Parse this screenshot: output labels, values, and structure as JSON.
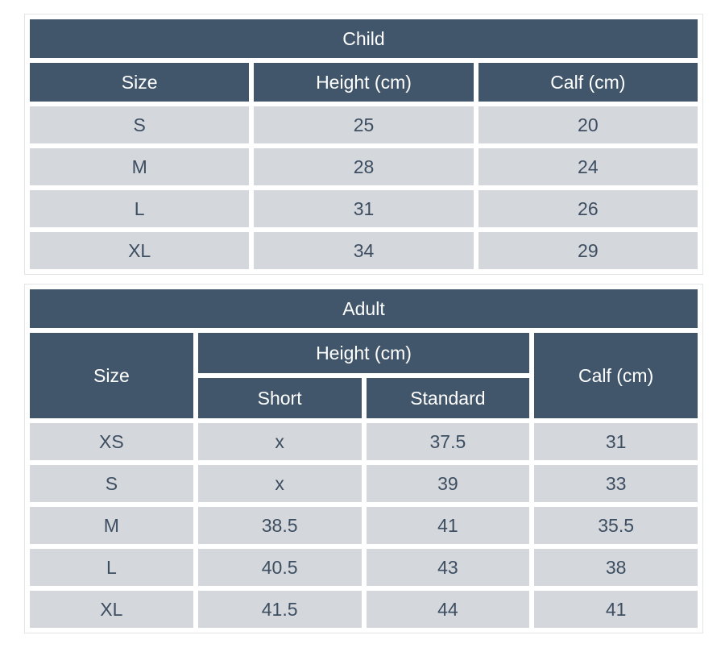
{
  "colors": {
    "header_bg": "#41566a",
    "header_text": "#ffffff",
    "cell_bg": "#d4d7dc",
    "cell_text": "#3d4e61",
    "table_border": "#e3e4e6",
    "page_bg": "#ffffff"
  },
  "chart_data": [
    {
      "type": "table",
      "title": "Child",
      "columns": [
        "Size",
        "Height (cm)",
        "Calf (cm)"
      ],
      "rows": [
        [
          "S",
          "25",
          "20"
        ],
        [
          "M",
          "28",
          "24"
        ],
        [
          "L",
          "31",
          "26"
        ],
        [
          "XL",
          "34",
          "29"
        ]
      ]
    },
    {
      "type": "table",
      "title": "Adult",
      "header": {
        "size": "Size",
        "height_group": "Height (cm)",
        "subcolumns": [
          "Short",
          "Standard"
        ],
        "calf": "Calf (cm)"
      },
      "columns": [
        "Size",
        "Height (cm) / Short",
        "Height (cm) / Standard",
        "Calf (cm)"
      ],
      "rows": [
        [
          "XS",
          "x",
          "37.5",
          "31"
        ],
        [
          "S",
          "x",
          "39",
          "33"
        ],
        [
          "M",
          "38.5",
          "41",
          "35.5"
        ],
        [
          "L",
          "40.5",
          "43",
          "38"
        ],
        [
          "XL",
          "41.5",
          "44",
          "41"
        ]
      ]
    }
  ]
}
